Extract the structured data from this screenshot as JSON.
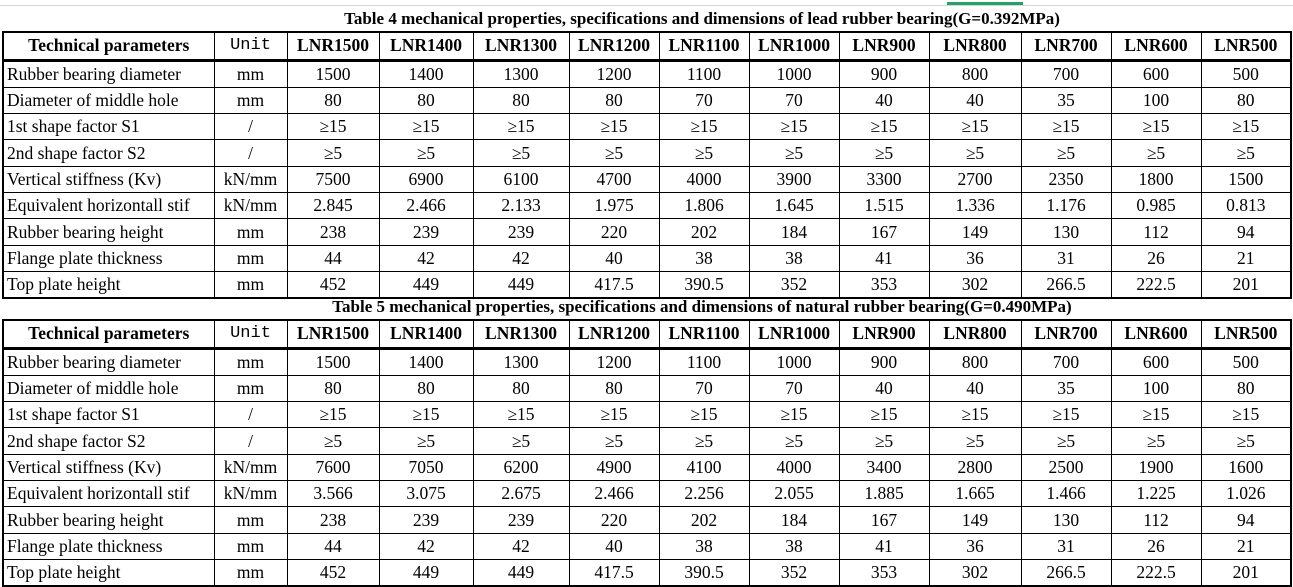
{
  "tables": [
    {
      "title": "Table 4 mechanical properties, specifications and dimensions of lead rubber bearing(G=0.392MPa)",
      "headers": [
        "Technical parameters",
        "Unit",
        "LNR1500",
        "LNR1400",
        "LNR1300",
        "LNR1200",
        "LNR1100",
        "LNR1000",
        "LNR900",
        "LNR800",
        "LNR700",
        "LNR600",
        "LNR500"
      ],
      "rows": [
        [
          "Rubber bearing diameter",
          "mm",
          "1500",
          "1400",
          "1300",
          "1200",
          "1100",
          "1000",
          "900",
          "800",
          "700",
          "600",
          "500"
        ],
        [
          "Diameter of  middle hole",
          "mm",
          "80",
          "80",
          "80",
          "80",
          "70",
          "70",
          "40",
          "40",
          "35",
          "100",
          "80"
        ],
        [
          "1st shape factor S1",
          "/",
          "≥15",
          "≥15",
          "≥15",
          "≥15",
          "≥15",
          "≥15",
          "≥15",
          "≥15",
          "≥15",
          "≥15",
          "≥15"
        ],
        [
          "2nd shape factor  S2",
          "/",
          "≥5",
          "≥5",
          "≥5",
          "≥5",
          "≥5",
          "≥5",
          "≥5",
          "≥5",
          "≥5",
          "≥5",
          "≥5"
        ],
        [
          "Vertical stiffness (Kv)",
          "kN/mm",
          "7500",
          "6900",
          "6100",
          "4700",
          "4000",
          "3900",
          "3300",
          "2700",
          "2350",
          "1800",
          "1500"
        ],
        [
          "Equivalent horizontall stif",
          "kN/mm",
          "2.845",
          "2.466",
          "2.133",
          "1.975",
          "1.806",
          "1.645",
          "1.515",
          "1.336",
          "1.176",
          "0.985",
          "0.813"
        ],
        [
          "Rubber bearing height",
          "mm",
          "238",
          "239",
          "239",
          "220",
          "202",
          "184",
          "167",
          "149",
          "130",
          "112",
          "94"
        ],
        [
          "Flange plate thickness",
          "mm",
          "44",
          "42",
          "42",
          "40",
          "38",
          "38",
          "41",
          "36",
          "31",
          "26",
          "21"
        ],
        [
          "Top plate height",
          "mm",
          "452",
          "449",
          "449",
          "417.5",
          "390.5",
          "352",
          "353",
          "302",
          "266.5",
          "222.5",
          "201"
        ]
      ]
    },
    {
      "title": "Table 5 mechanical properties, specifications and dimensions of natural rubber bearing(G=0.490MPa)",
      "headers": [
        "Technical parameters",
        "Unit",
        "LNR1500",
        "LNR1400",
        "LNR1300",
        "LNR1200",
        "LNR1100",
        "LNR1000",
        "LNR900",
        "LNR800",
        "LNR700",
        "LNR600",
        "LNR500"
      ],
      "rows": [
        [
          "Rubber bearing diameter",
          "mm",
          "1500",
          "1400",
          "1300",
          "1200",
          "1100",
          "1000",
          "900",
          "800",
          "700",
          "600",
          "500"
        ],
        [
          "Diameter of  middle hole",
          "mm",
          "80",
          "80",
          "80",
          "80",
          "70",
          "70",
          "40",
          "40",
          "35",
          "100",
          "80"
        ],
        [
          "1st shape factor S1",
          "/",
          "≥15",
          "≥15",
          "≥15",
          "≥15",
          "≥15",
          "≥15",
          "≥15",
          "≥15",
          "≥15",
          "≥15",
          "≥15"
        ],
        [
          "2nd shape factor  S2",
          "/",
          "≥5",
          "≥5",
          "≥5",
          "≥5",
          "≥5",
          "≥5",
          "≥5",
          "≥5",
          "≥5",
          "≥5",
          "≥5"
        ],
        [
          "Vertical stiffness (Kv)",
          "kN/mm",
          "7600",
          "7050",
          "6200",
          "4900",
          "4100",
          "4000",
          "3400",
          "2800",
          "2500",
          "1900",
          "1600"
        ],
        [
          "Equivalent horizontall stif",
          "kN/mm",
          "3.566",
          "3.075",
          "2.675",
          "2.466",
          "2.256",
          "2.055",
          "1.885",
          "1.665",
          "1.466",
          "1.225",
          "1.026"
        ],
        [
          "Rubber bearing height",
          "mm",
          "238",
          "239",
          "239",
          "220",
          "202",
          "184",
          "167",
          "149",
          "130",
          "112",
          "94"
        ],
        [
          "Flange plate thickness",
          "mm",
          "44",
          "42",
          "42",
          "40",
          "38",
          "38",
          "41",
          "36",
          "31",
          "26",
          "21"
        ],
        [
          "Top plate height",
          "mm",
          "452",
          "449",
          "449",
          "417.5",
          "390.5",
          "352",
          "353",
          "302",
          "266.5",
          "222.5",
          "201"
        ]
      ]
    }
  ]
}
